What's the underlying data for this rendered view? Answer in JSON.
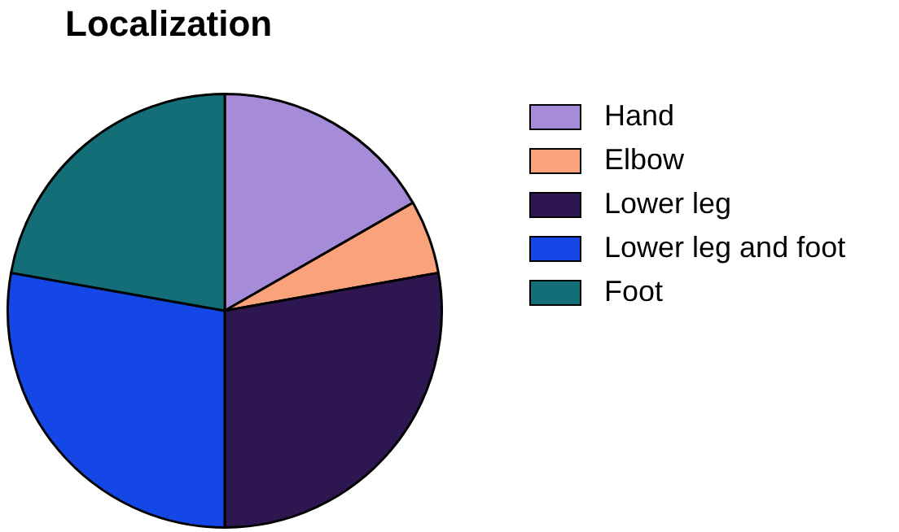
{
  "chart_data": {
    "type": "pie",
    "title": "Localization",
    "categories": [
      "Hand",
      "Elbow",
      "Lower leg",
      "Lower leg and foot",
      "Foot"
    ],
    "values": [
      16.7,
      5.5,
      27.8,
      27.8,
      22.2
    ],
    "colors": [
      "#a68bd8",
      "#f9a27c",
      "#2e1650",
      "#1447e6",
      "#136e78"
    ],
    "legend": "right"
  }
}
